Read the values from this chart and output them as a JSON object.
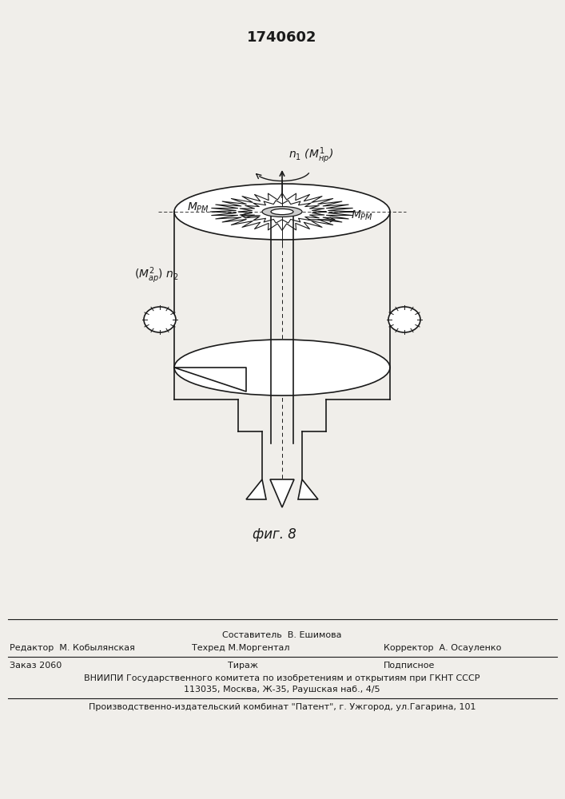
{
  "patent_number": "1740602",
  "fig_label": "фиг. 8",
  "labels": {
    "top_center": "n₁ (M¹нр)",
    "top_right": "MРМ",
    "top_left": "MРМ",
    "left": "(M²ар) n₂"
  },
  "footer": {
    "line1_center": "Составитель  В. Ешимова",
    "line2_left": "Редактор  М. Кобылянская",
    "line2_center": "Техред М.Моргентал",
    "line2_right": "Корректор  А. Осауленко",
    "line3_left": "Заказ 2060",
    "line3_center": "Тираж",
    "line3_right": "Подписное",
    "line4": "ВНИИПИ Государственного комитета по изобретениям и открытиям при ГКНТ СССР",
    "line5": "113035, Москва, Ж-35, Раушская наб., 4/5",
    "line6": "Производственно-издательский комбинат \"Патент\", г. Ужгород, ул.Гагарина, 101"
  },
  "bg_color": "#f0eeea",
  "line_color": "#1a1a1a",
  "text_color": "#1a1a1a"
}
